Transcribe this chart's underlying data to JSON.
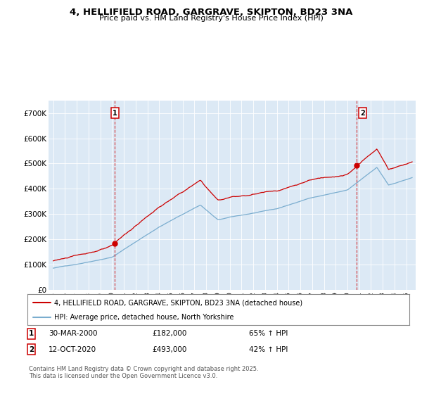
{
  "title": "4, HELLIFIELD ROAD, GARGRAVE, SKIPTON, BD23 3NA",
  "subtitle": "Price paid vs. HM Land Registry's House Price Index (HPI)",
  "red_label": "4, HELLIFIELD ROAD, GARGRAVE, SKIPTON, BD23 3NA (detached house)",
  "blue_label": "HPI: Average price, detached house, North Yorkshire",
  "sale1_date": "30-MAR-2000",
  "sale1_price": 182000,
  "sale1_hpi_pct": "65% ↑ HPI",
  "sale2_date": "12-OCT-2020",
  "sale2_price": 493000,
  "sale2_hpi_pct": "42% ↑ HPI",
  "footnote": "Contains HM Land Registry data © Crown copyright and database right 2025.\nThis data is licensed under the Open Government Licence v3.0.",
  "background_color": "#dce9f5",
  "red_color": "#cc0000",
  "blue_color": "#7aadcf",
  "ylim": [
    0,
    750000
  ],
  "yticks": [
    0,
    100000,
    200000,
    300000,
    400000,
    500000,
    600000,
    700000
  ],
  "ytick_labels": [
    "£0",
    "£100K",
    "£200K",
    "£300K",
    "£400K",
    "£500K",
    "£600K",
    "£700K"
  ],
  "sale1_year": 2000.247,
  "sale2_year": 2020.784
}
